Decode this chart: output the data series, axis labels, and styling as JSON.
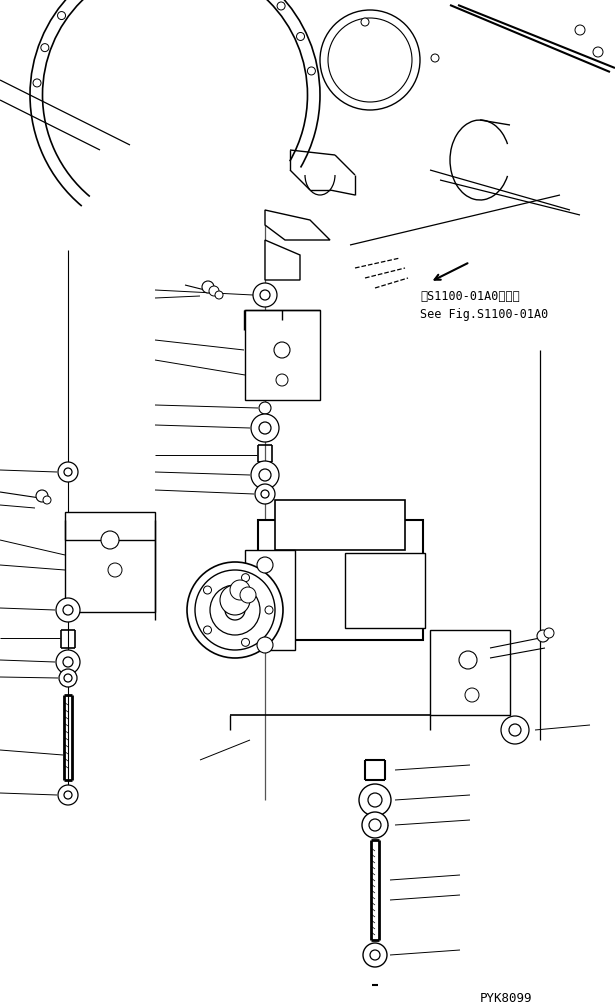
{
  "background_color": "#ffffff",
  "line_color": "#000000",
  "text_color": "#000000",
  "part_code": "PYK8099",
  "ref_text_line1": "第S1100-01A0図参照",
  "ref_text_line2": "See Fig.S1100-01A0",
  "fig_width": 6.15,
  "fig_height": 10.06,
  "dpi": 100
}
